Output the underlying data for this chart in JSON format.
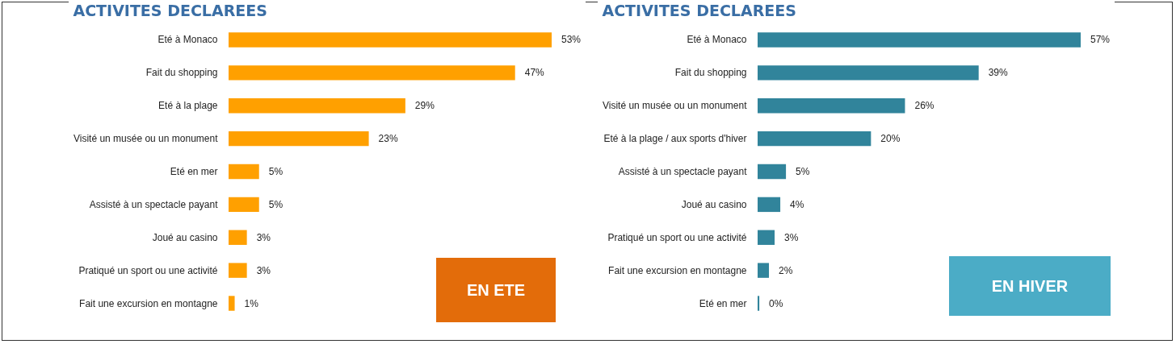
{
  "chart_data": [
    {
      "type": "bar",
      "orientation": "horizontal",
      "title": "ACTIVITES DECLAREES",
      "categories": [
        "Eté à Monaco",
        "Fait du shopping",
        "Eté à la plage",
        "Visité un musée ou un monument",
        "Eté en mer",
        "Assisté à un spectacle payant",
        "Joué au casino",
        "Pratiqué un sport ou une activité",
        "Fait une excursion en montagne"
      ],
      "values": [
        53,
        47,
        29,
        23,
        5,
        5,
        3,
        3,
        1
      ],
      "value_labels": [
        "53%",
        "47%",
        "29%",
        "23%",
        "5%",
        "5%",
        "3%",
        "3%",
        "1%"
      ],
      "color": "#ffa000",
      "annotations": [
        "EN ETE"
      ]
    },
    {
      "type": "bar",
      "orientation": "horizontal",
      "title": "ACTIVITES DECLAREES",
      "categories": [
        "Eté à Monaco",
        "Fait du shopping",
        "Visité un musée ou un monument",
        "Eté à la plage / aux sports d'hiver",
        "Assisté à un spectacle payant",
        "Joué au casino",
        "Pratiqué un sport ou une activité",
        "Fait une excursion en montagne",
        "Eté en mer"
      ],
      "values": [
        57,
        39,
        26,
        20,
        5,
        4,
        3,
        2,
        0.3
      ],
      "value_labels": [
        "57%",
        "39%",
        "26%",
        "20%",
        "5%",
        "4%",
        "3%",
        "2%",
        "0%"
      ],
      "color": "#31849b",
      "annotations": [
        "EN HIVER"
      ]
    }
  ]
}
